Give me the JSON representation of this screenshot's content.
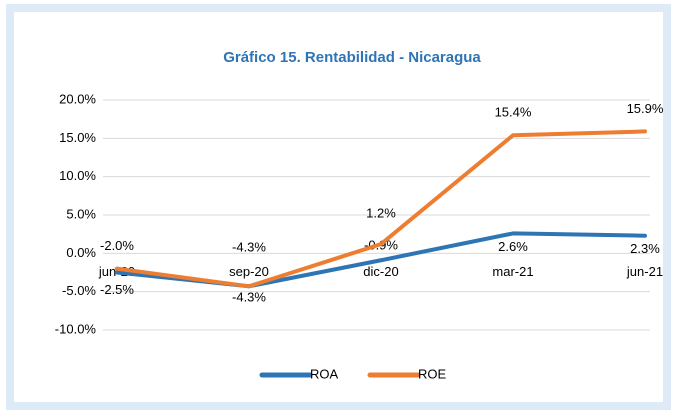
{
  "chart_data": {
    "type": "line",
    "title": "Gráfico 15. Rentabilidad - Nicaragua",
    "categories": [
      "jun-20",
      "sep-20",
      "dic-20",
      "mar-21",
      "jun-21"
    ],
    "series": [
      {
        "name": "ROA",
        "color": "#2e75b6",
        "values": [
          -2.5,
          -4.3,
          -0.9,
          2.6,
          2.3
        ],
        "value_labels": [
          "-2.5%",
          "-4.3%",
          "-0.9%",
          "2.6%",
          "2.3%"
        ]
      },
      {
        "name": "ROE",
        "color": "#ed7d31",
        "values": [
          -2.0,
          -4.3,
          1.2,
          15.4,
          15.9
        ],
        "value_labels": [
          "-2.0%",
          "-4.3%",
          "1.2%",
          "15.4%",
          "15.9%"
        ]
      }
    ],
    "ylim": [
      -10,
      20
    ],
    "yticks": [
      {
        "value": -10,
        "label": "-10.0%"
      },
      {
        "value": -5,
        "label": "-5.0%"
      },
      {
        "value": 0,
        "label": "0.0%"
      },
      {
        "value": 5,
        "label": "5.0%"
      },
      {
        "value": 10,
        "label": "10.0%"
      },
      {
        "value": 15,
        "label": "15.0%"
      },
      {
        "value": 20,
        "label": "20.0%"
      }
    ],
    "grid": true,
    "legend": "bottom"
  }
}
